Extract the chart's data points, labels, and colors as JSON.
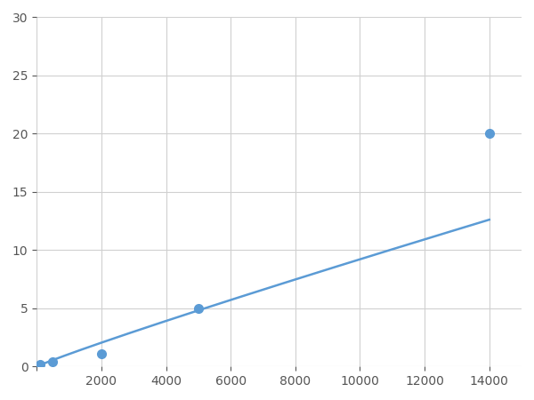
{
  "x_points": [
    100,
    500,
    2000,
    5000,
    14000
  ],
  "y_points": [
    0.2,
    0.4,
    1.1,
    5.0,
    20.0
  ],
  "line_color": "#5b9bd5",
  "marker_color": "#5b9bd5",
  "marker_size": 7,
  "line_width": 1.8,
  "xlim": [
    0,
    15000
  ],
  "ylim": [
    0,
    30
  ],
  "xticks": [
    0,
    2000,
    4000,
    6000,
    8000,
    10000,
    12000,
    14000
  ],
  "yticks": [
    0,
    5,
    10,
    15,
    20,
    25,
    30
  ],
  "grid_color": "#d0d0d0",
  "background_color": "#ffffff",
  "tick_label_color": "#555555",
  "tick_fontsize": 10
}
